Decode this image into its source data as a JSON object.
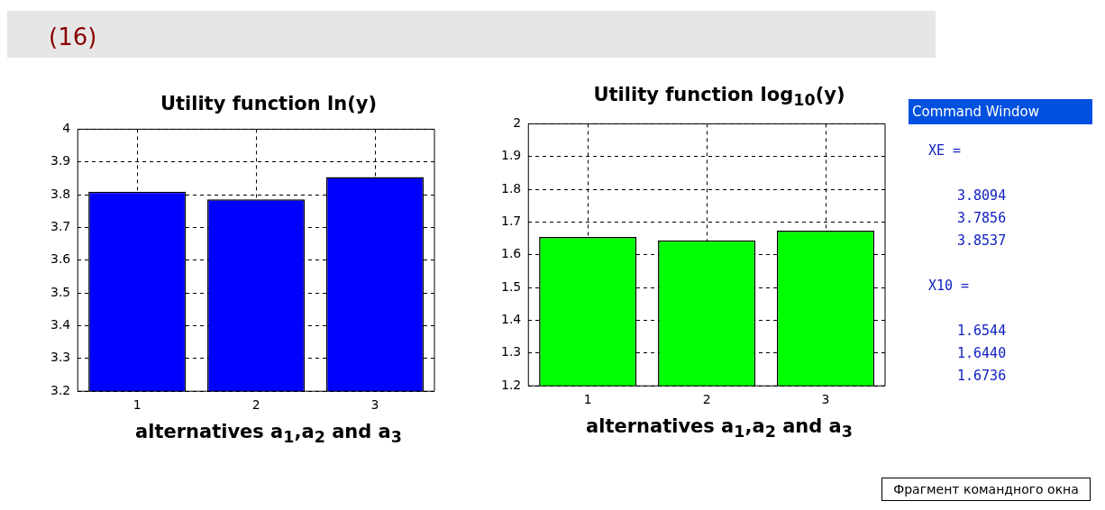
{
  "chart_data": [
    {
      "type": "bar",
      "title": "Utility function ln(y)",
      "xlabel": "alternatives a$_{1}$,a$_{2}$ and a$_{3}$",
      "categories": [
        "1",
        "2",
        "3"
      ],
      "values": [
        3.8094,
        3.7856,
        3.8537
      ],
      "color": "#0000ff",
      "ylim": [
        3.2,
        4
      ],
      "yticks": [
        3.2,
        3.3,
        3.4,
        3.5,
        3.6,
        3.7,
        3.8,
        3.9,
        4
      ],
      "grid": true,
      "annotations": [
        "(16)"
      ]
    },
    {
      "type": "bar",
      "title": "Utility function log$_{10}$(y)",
      "xlabel": "alternatives a$_{1}$,a$_{2}$ and a$_{3}$",
      "categories": [
        "1",
        "2",
        "3"
      ],
      "values": [
        1.6544,
        1.644,
        1.6736
      ],
      "color": "#00ff00",
      "ylim": [
        1.2,
        2
      ],
      "yticks": [
        1.2,
        1.3,
        1.4,
        1.5,
        1.6,
        1.7,
        1.8,
        1.9,
        2
      ],
      "grid": true
    },
    {
      "type": "other",
      "title": "Command Window",
      "annotations": [
        "XE =",
        "3.8094",
        "3.7856",
        "3.8537",
        "X10 =",
        "1.6544",
        "1.6440",
        "1.6736",
        "Фрагмент командного окна"
      ]
    }
  ]
}
